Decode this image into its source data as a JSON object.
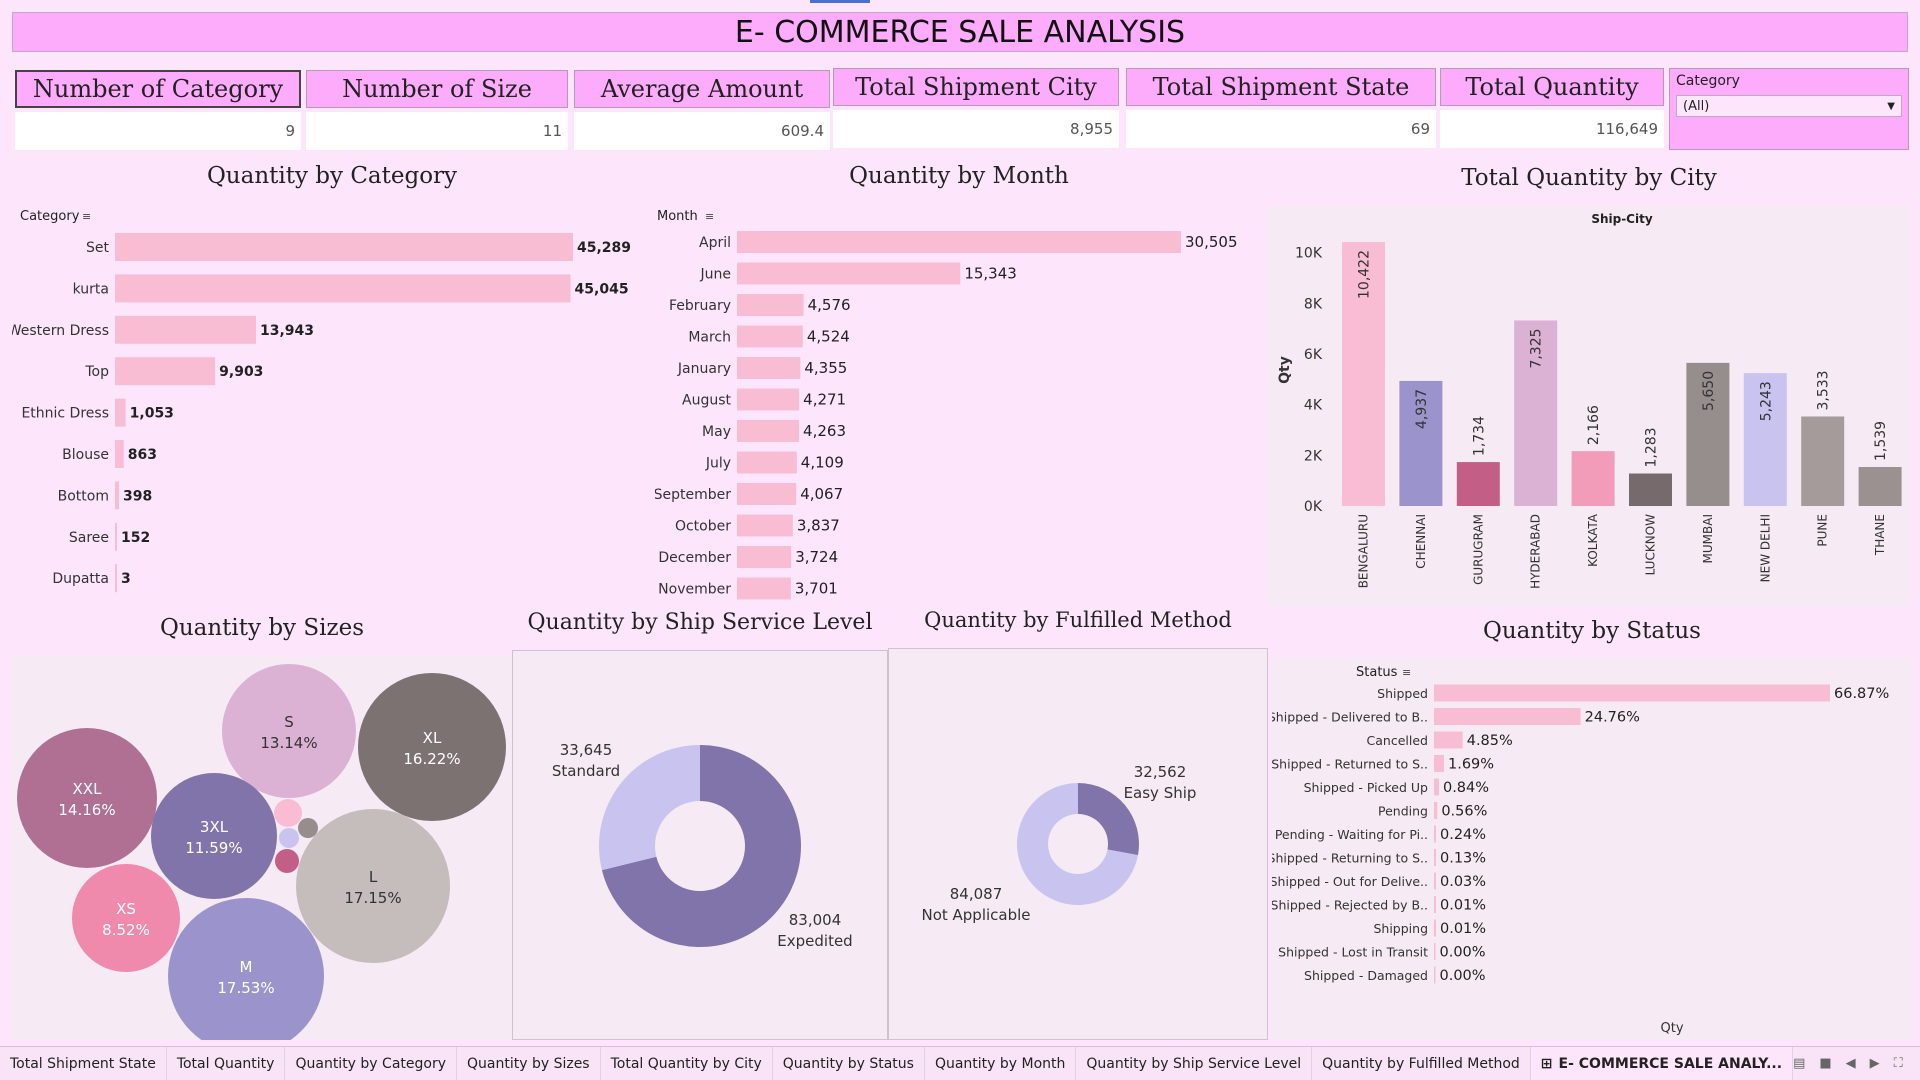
{
  "title": "E- COMMERCE SALE ANALYSIS",
  "kpis": [
    {
      "label": "Number of Category",
      "value": "9"
    },
    {
      "label": "Number of Size",
      "value": "11"
    },
    {
      "label": "Average Amount",
      "value": "609.4"
    },
    {
      "label": "Total Shipment City",
      "value": "8,955"
    },
    {
      "label": "Total Shipment State",
      "value": "69"
    },
    {
      "label": "Total Quantity",
      "value": "116,649"
    }
  ],
  "filter": {
    "label": "Category",
    "value": "(All)"
  },
  "sections": {
    "category": "Quantity by Category",
    "month": "Quantity by Month",
    "city": "Total Quantity by City",
    "sizes": "Quantity by Sizes",
    "ship_service": "Quantity by Ship Service Level",
    "fulfilled": "Quantity by Fulfilled Method",
    "status": "Quantity by Status"
  },
  "colors": {
    "bar_pink": "#f9bdd3",
    "donut_dark": "#8074ab",
    "donut_light": "#c9c3ef"
  },
  "chart_data": [
    {
      "id": "category",
      "type": "bar",
      "orientation": "horizontal",
      "dimension_label": "Category",
      "categories": [
        "Set",
        "kurta",
        "Western Dress",
        "Top",
        "Ethnic Dress",
        "Blouse",
        "Bottom",
        "Saree",
        "Dupatta"
      ],
      "values": [
        45289,
        45045,
        13943,
        9903,
        1053,
        863,
        398,
        152,
        3
      ],
      "labels": [
        "45,289",
        "45,045",
        "13,943",
        "9,903",
        "1,053",
        "863",
        "398",
        "152",
        "3"
      ]
    },
    {
      "id": "month",
      "type": "bar",
      "orientation": "horizontal",
      "dimension_label": "Month",
      "categories": [
        "April",
        "June",
        "February",
        "March",
        "January",
        "August",
        "May",
        "July",
        "September",
        "October",
        "December",
        "November"
      ],
      "values": [
        30505,
        15343,
        4576,
        4524,
        4355,
        4271,
        4263,
        4109,
        4067,
        3837,
        3724,
        3701
      ],
      "labels": [
        "30,505",
        "15,343",
        "4,576",
        "4,524",
        "4,355",
        "4,271",
        "4,263",
        "4,109",
        "4,067",
        "3,837",
        "3,724",
        "3,701"
      ]
    },
    {
      "id": "city",
      "type": "bar",
      "orientation": "vertical",
      "header": "Ship-City",
      "ylabel": "Qty",
      "ylim": [
        0,
        10422
      ],
      "yticks": [
        0,
        2000,
        4000,
        6000,
        8000,
        10000
      ],
      "ytick_labels": [
        "0K",
        "2K",
        "4K",
        "6K",
        "8K",
        "10K"
      ],
      "categories": [
        "BENGALURU",
        "CHENNAI",
        "GURUGRAM",
        "HYDERABAD",
        "KOLKATA",
        "LUCKNOW",
        "MUMBAI",
        "NEW DELHI",
        "PUNE",
        "THANE"
      ],
      "values": [
        10422,
        4937,
        1734,
        7325,
        2166,
        1283,
        5650,
        5243,
        3533,
        1539
      ],
      "labels": [
        "10,422",
        "4,937",
        "1,734",
        "7,325",
        "2,166",
        "1,283",
        "5,650",
        "5,243",
        "3,533",
        "1,539"
      ],
      "bar_colors": [
        "#f9bdd3",
        "#9b94cc",
        "#c35f86",
        "#dbb1d4",
        "#f39cba",
        "#776a6c",
        "#968d8d",
        "#c9c3ef",
        "#a59b9b",
        "#9b9191"
      ]
    },
    {
      "id": "sizes",
      "type": "bubble",
      "items": [
        {
          "name": "S",
          "pct": "13.14%",
          "color": "#dbb1d4"
        },
        {
          "name": "XL",
          "pct": "16.22%",
          "color": "#7d7272"
        },
        {
          "name": "XXL",
          "pct": "14.16%",
          "color": "#b07094"
        },
        {
          "name": "3XL",
          "pct": "11.59%",
          "color": "#8074ab"
        },
        {
          "name": "L",
          "pct": "17.15%",
          "color": "#c5bcbc"
        },
        {
          "name": "XS",
          "pct": "8.52%",
          "color": "#f08aac"
        },
        {
          "name": "M",
          "pct": "17.53%",
          "color": "#9b94cc"
        }
      ]
    },
    {
      "id": "ship_service",
      "type": "pie",
      "slices": [
        {
          "name": "Expedited",
          "value": 83004,
          "label": "83,004",
          "color": "#8074ab"
        },
        {
          "name": "Standard",
          "value": 33645,
          "label": "33,645",
          "color": "#c9c3ef"
        }
      ]
    },
    {
      "id": "fulfilled",
      "type": "pie",
      "slices": [
        {
          "name": "Easy Ship",
          "value": 32562,
          "label": "32,562",
          "color": "#8074ab"
        },
        {
          "name": "Not Applicable",
          "value": 84087,
          "label": "84,087",
          "color": "#c9c3ef"
        }
      ]
    },
    {
      "id": "status",
      "type": "bar",
      "orientation": "horizontal",
      "dimension_label": "Status",
      "xlabel": "Qty",
      "categories": [
        "Shipped",
        "Shipped - Delivered to B..",
        "Cancelled",
        "Shipped - Returned to S..",
        "Shipped - Picked Up",
        "Pending",
        "Pending - Waiting for Pi..",
        "Shipped - Returning to S..",
        "Shipped - Out for Delive..",
        "Shipped - Rejected by B..",
        "Shipping",
        "Shipped - Lost in Transit",
        "Shipped - Damaged"
      ],
      "values": [
        66.87,
        24.76,
        4.85,
        1.69,
        0.84,
        0.56,
        0.24,
        0.13,
        0.03,
        0.01,
        0.01,
        0.0,
        0.0
      ],
      "labels": [
        "66.87%",
        "24.76%",
        "4.85%",
        "1.69%",
        "0.84%",
        "0.56%",
        "0.24%",
        "0.13%",
        "0.03%",
        "0.01%",
        "0.01%",
        "0.00%",
        "0.00%"
      ]
    }
  ],
  "tabs": [
    {
      "label": "Total Shipment State"
    },
    {
      "label": "Total Quantity"
    },
    {
      "label": "Quantity by Category"
    },
    {
      "label": "Quantity by Sizes"
    },
    {
      "label": "Total Quantity by City"
    },
    {
      "label": "Quantity by Status"
    },
    {
      "label": "Quantity by Month"
    },
    {
      "label": "Quantity by Ship Service Level"
    },
    {
      "label": "Quantity by Fulfilled Method"
    },
    {
      "label": "E- COMMERCE SALE ANALY...",
      "active": true
    }
  ]
}
